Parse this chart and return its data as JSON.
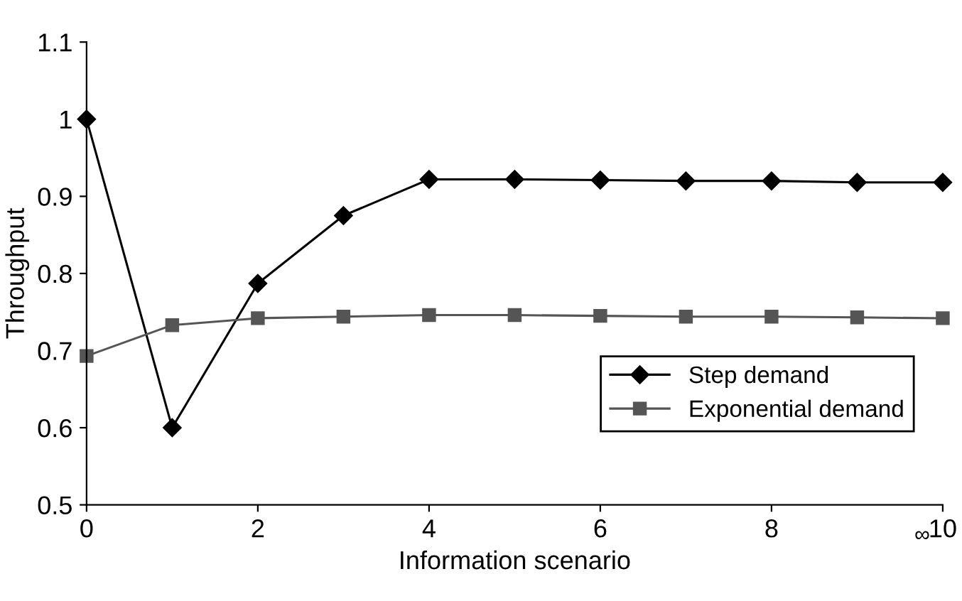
{
  "chart_data": {
    "type": "line",
    "xlabel": "Information scenario",
    "ylabel": "Throughput",
    "x": [
      0,
      1,
      2,
      3,
      4,
      5,
      6,
      7,
      8,
      9,
      10
    ],
    "series": [
      {
        "name": "Step demand",
        "color": "#000000",
        "marker": "diamond",
        "values": [
          1.0,
          0.6,
          0.787,
          0.875,
          0.922,
          0.922,
          0.921,
          0.92,
          0.92,
          0.918,
          0.918
        ]
      },
      {
        "name": "Exponential demand",
        "color": "#555555",
        "marker": "square",
        "values": [
          0.693,
          0.733,
          0.742,
          0.744,
          0.746,
          0.746,
          0.745,
          0.744,
          0.744,
          0.743,
          0.742
        ]
      }
    ],
    "xlim": [
      0,
      10
    ],
    "xticks": [
      0,
      2,
      4,
      6,
      8,
      10
    ],
    "ylim": [
      0.5,
      1.1
    ],
    "yticks": [
      0.5,
      0.6,
      0.7,
      0.8,
      0.9,
      1,
      1.1
    ],
    "annotations": [
      "∞"
    ],
    "legend": "center right",
    "grid": false,
    "line_style": "solid"
  }
}
